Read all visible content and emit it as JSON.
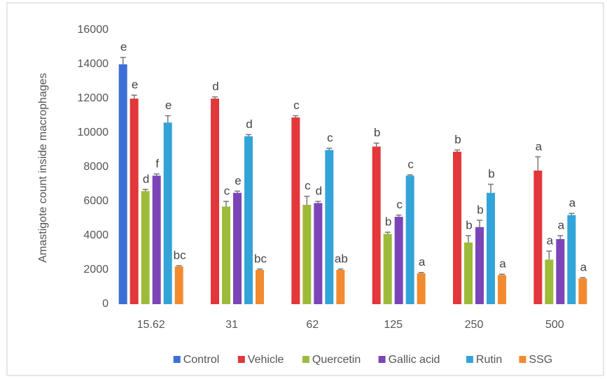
{
  "chart_data": {
    "type": "bar",
    "y_label": "Amastigote count inside macrophages",
    "categories": [
      "15.62",
      "31",
      "62",
      "125",
      "250",
      "500"
    ],
    "ylim": [
      0,
      16000
    ],
    "yticks": [
      0,
      2000,
      4000,
      6000,
      8000,
      10000,
      12000,
      14000,
      16000
    ],
    "legend": "bottom",
    "series": [
      {
        "name": "Control",
        "color": "#3c6fd6",
        "values": [
          14000,
          null,
          null,
          null,
          null,
          null
        ],
        "errors": [
          400,
          null,
          null,
          null,
          null,
          null
        ],
        "letters": [
          "e",
          null,
          null,
          null,
          null,
          null
        ]
      },
      {
        "name": "Vehicle",
        "color": "#e2373b",
        "values": [
          12000,
          12000,
          10900,
          9200,
          8900,
          7800
        ],
        "errors": [
          200,
          100,
          100,
          200,
          100,
          800
        ],
        "letters": [
          "e",
          "d",
          "c",
          "b",
          "b",
          "a"
        ]
      },
      {
        "name": "Quercetin",
        "color": "#9dbb3a",
        "values": [
          6600,
          5700,
          5800,
          4100,
          3600,
          2600
        ],
        "errors": [
          100,
          300,
          500,
          100,
          400,
          500
        ],
        "letters": [
          "d",
          "c",
          "c",
          "b",
          "b",
          "a"
        ]
      },
      {
        "name": "Gallic acid",
        "color": "#7b45b8",
        "values": [
          7500,
          6500,
          5900,
          5100,
          4500,
          3800
        ],
        "errors": [
          100,
          100,
          100,
          100,
          400,
          200
        ],
        "letters": [
          "f",
          "e",
          "d",
          "c",
          "b",
          "a"
        ]
      },
      {
        "name": "Rutin",
        "color": "#33a4d8",
        "values": [
          10600,
          9800,
          9000,
          7500,
          6500,
          5200
        ],
        "errors": [
          400,
          100,
          100,
          50,
          500,
          100
        ],
        "letters": [
          "e",
          "d",
          "c",
          "c",
          "b",
          "a"
        ]
      },
      {
        "name": "SSG",
        "color": "#f28a30",
        "values": [
          2200,
          2000,
          2000,
          1800,
          1700,
          1500
        ],
        "errors": [
          50,
          50,
          50,
          50,
          50,
          50
        ],
        "letters": [
          "bc",
          "bc",
          "ab",
          "a",
          "a",
          "a"
        ]
      }
    ]
  }
}
